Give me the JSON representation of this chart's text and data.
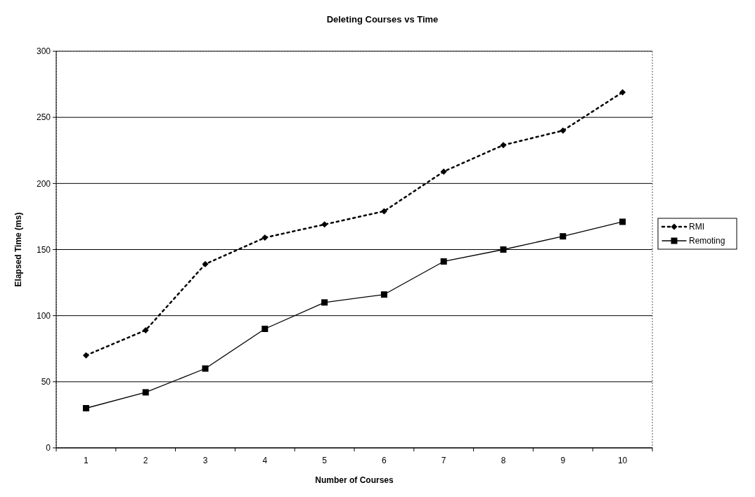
{
  "chart_data": {
    "type": "line",
    "title": "Deleting Courses vs Time",
    "xlabel": "Number of Courses",
    "ylabel": "Elapsed Time (ms)",
    "categories": [
      "1",
      "2",
      "3",
      "4",
      "5",
      "6",
      "7",
      "8",
      "9",
      "10"
    ],
    "series": [
      {
        "name": "RMI",
        "color": "#000000",
        "marker": "diamond",
        "line_style": "dotted",
        "values": [
          70,
          89,
          139,
          159,
          169,
          179,
          209,
          229,
          240,
          269
        ]
      },
      {
        "name": "Remoting",
        "color": "#000000",
        "marker": "square",
        "line_style": "solid",
        "values": [
          30,
          42,
          60,
          90,
          110,
          116,
          141,
          150,
          160,
          171
        ]
      }
    ],
    "ylim": [
      0,
      300
    ],
    "yticks": [
      0,
      50,
      100,
      150,
      200,
      250,
      300
    ],
    "grid": "y",
    "legend": "right"
  }
}
